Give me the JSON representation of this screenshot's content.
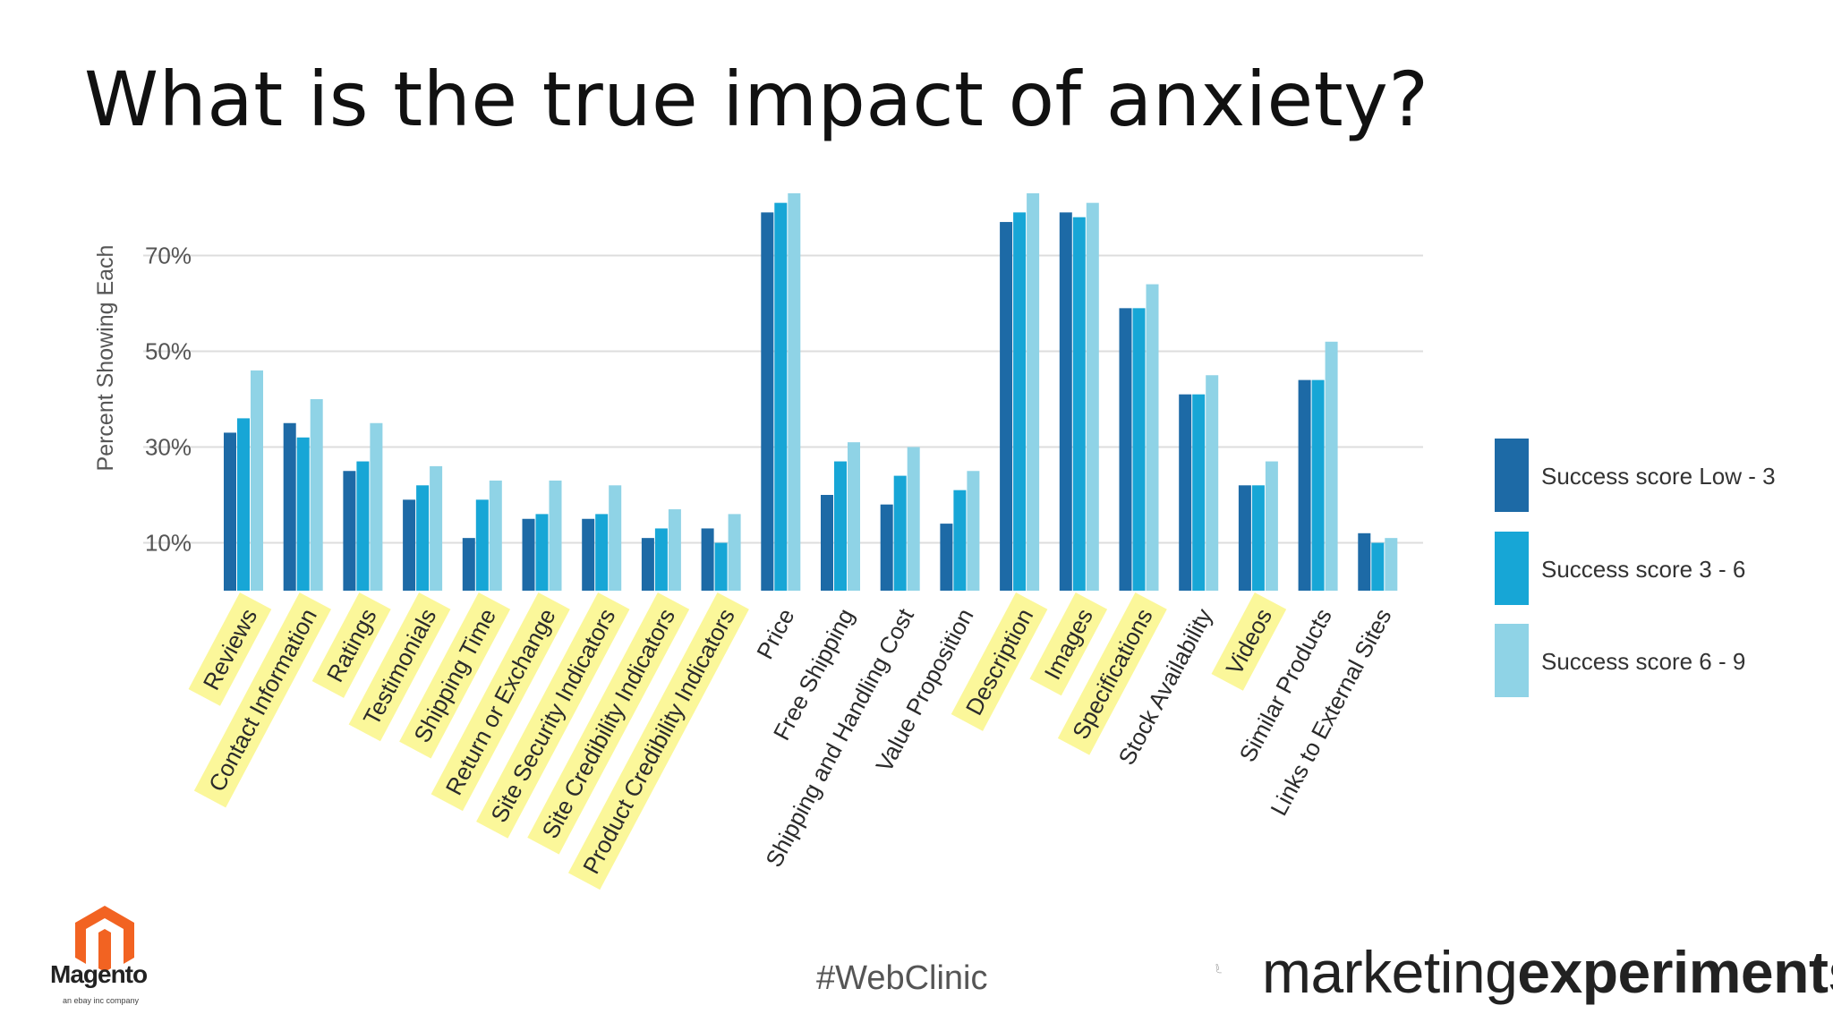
{
  "slide": {
    "title": "What is the true impact of anxiety?",
    "hashtag": "#WebClinic"
  },
  "logos": {
    "magento": {
      "name": "Magento",
      "tagline": "an ebay inc company",
      "icon": "magento-hexagon-icon"
    },
    "marketing_experiments": {
      "text_light": "marketing",
      "text_bold": "experiments",
      "icon": "pen-nib-icon"
    }
  },
  "colors": {
    "series_low": "#1d6aa6",
    "series_mid": "#17a6d6",
    "series_high": "#8fd3e6",
    "highlight": "#fbf79a",
    "grid": "#dddddd",
    "axis_text": "#555555",
    "category_text": "#2b2b2b"
  },
  "chart_data": {
    "type": "bar",
    "ylabel": "Percent Showing Each",
    "yticks": [
      "10%",
      "30%",
      "50%",
      "70%"
    ],
    "ytick_values": [
      10,
      30,
      50,
      70
    ],
    "ylim": [
      0,
      85
    ],
    "grid": true,
    "legend_position": "right",
    "categories": [
      "Reviews",
      "Contact Information",
      "Ratings",
      "Testimonials",
      "Shipping Time",
      "Return or Exchange",
      "Site Security Indicators",
      "Site Credibility Indicators",
      "Product Credibility Indicators",
      "Price",
      "Free Shipping",
      "Shipping and Handling Cost",
      "Value Proposition",
      "Description",
      "Images",
      "Specifications",
      "Stock Availability",
      "Videos",
      "Similar Products",
      "Links to External Sites"
    ],
    "highlighted_categories": [
      "Reviews",
      "Contact Information",
      "Ratings",
      "Testimonials",
      "Shipping Time",
      "Return or Exchange",
      "Site Security Indicators",
      "Site Credibility Indicators",
      "Product Credibility Indicators",
      "Description",
      "Images",
      "Specifications",
      "Videos"
    ],
    "series": [
      {
        "name": "Success score Low - 3",
        "values": [
          33,
          35,
          25,
          19,
          11,
          15,
          15,
          11,
          13,
          79,
          20,
          18,
          14,
          77,
          79,
          59,
          41,
          22,
          44,
          12
        ]
      },
      {
        "name": "Success score 3 - 6",
        "values": [
          36,
          32,
          27,
          22,
          19,
          16,
          16,
          13,
          10,
          81,
          27,
          24,
          21,
          79,
          78,
          59,
          41,
          22,
          44,
          10
        ]
      },
      {
        "name": "Success score 6 - 9",
        "values": [
          46,
          40,
          35,
          26,
          23,
          23,
          22,
          17,
          16,
          83,
          31,
          30,
          25,
          83,
          81,
          64,
          45,
          27,
          52,
          11
        ]
      }
    ]
  }
}
